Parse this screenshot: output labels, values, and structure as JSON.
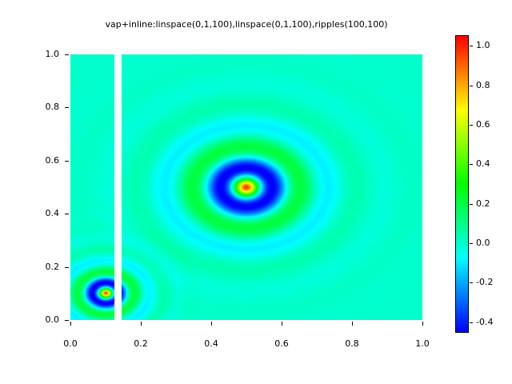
{
  "chart": {
    "title": "vap+inline:linspace(0,1,100),linspace(0,1,100),ripples(100,100)",
    "x_tick_labels": [
      "0.0",
      "0.2",
      "0.4",
      "0.6",
      "0.8",
      "1.0"
    ],
    "y_tick_labels": [
      "0.0",
      "0.2",
      "0.4",
      "0.6",
      "0.8",
      "1.0"
    ],
    "colorbar_tick_labels": [
      "1.0",
      "0.8",
      "0.6",
      "0.4",
      "0.2",
      "0.0",
      "-0.2",
      "-0.4"
    ]
  },
  "chart_data": {
    "type": "heatmap",
    "title": "vap+inline:linspace(0,1,100),linspace(0,1,100),ripples(100,100)",
    "x_range": [
      0,
      1
    ],
    "y_range": [
      0,
      1
    ],
    "grid": [
      100,
      100
    ],
    "x_ticks": [
      0.0,
      0.2,
      0.4,
      0.6,
      0.8,
      1.0
    ],
    "y_ticks": [
      0.0,
      0.2,
      0.4,
      0.6,
      0.8,
      1.0
    ],
    "colormap": "rainbow blue-cyan-green-yellow-red",
    "vmin": -0.45,
    "vmax": 1.05,
    "colorbar_ticks": [
      1.0,
      0.8,
      0.6,
      0.4,
      0.2,
      0.0,
      -0.2,
      -0.4
    ],
    "background_value": 0.0,
    "function": "z(x,y) = sum_i peak_i * cos(2*pi*r_i/wavelength_i) * exp(-r_i/decay_i), r_i = distance to source i",
    "sources": [
      {
        "center": [
          0.5,
          0.5
        ],
        "wavelength": 0.16,
        "decay": 0.1,
        "peak": 1.0
      },
      {
        "center": [
          0.1,
          0.1
        ],
        "wavelength": 0.085,
        "decay": 0.053,
        "peak": 1.0
      }
    ],
    "white_gap_x_range": [
      0.125,
      0.146
    ]
  }
}
